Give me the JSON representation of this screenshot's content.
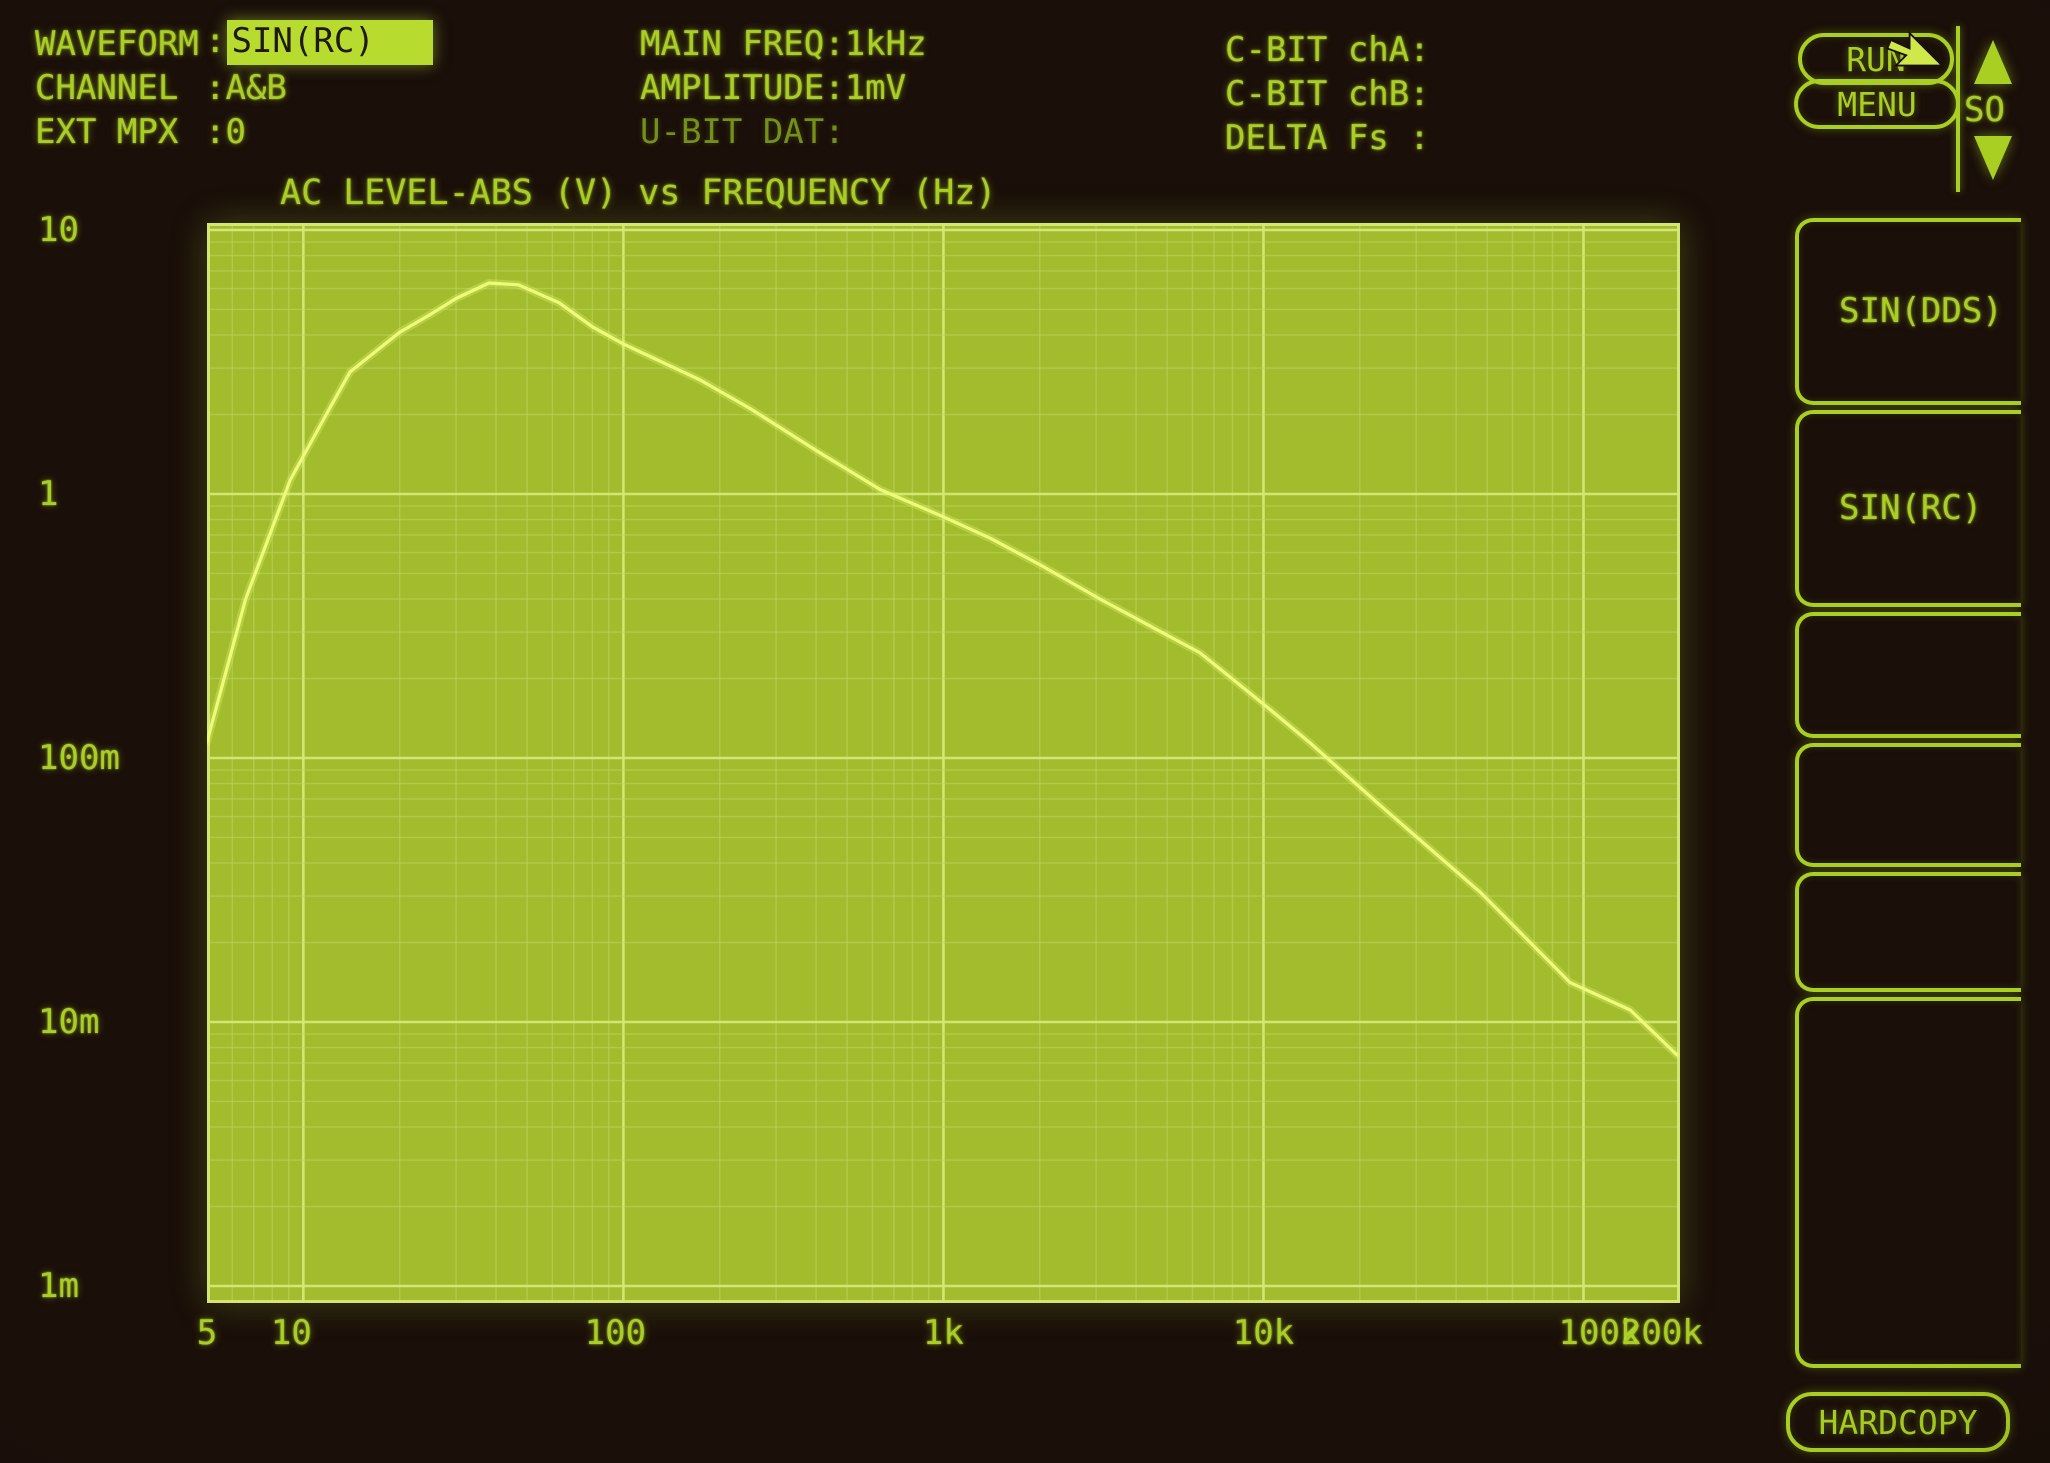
{
  "header": {
    "left": [
      {
        "label": "WAVEFORM",
        "sep": ":",
        "value": "SIN(RC)"
      },
      {
        "label": "CHANNEL",
        "sep": ":",
        "value": "A&B"
      },
      {
        "label": "EXT MPX",
        "sep": ":",
        "value": "0"
      }
    ],
    "middle": [
      {
        "label": "MAIN FREQ:",
        "value": "1kHz"
      },
      {
        "label": "AMPLITUDE:",
        "value": "1mV"
      },
      {
        "label": "U-BIT DAT:",
        "value": ""
      }
    ],
    "right": [
      {
        "label": "C-BIT chA:",
        "value": ""
      },
      {
        "label": "C-BIT chB:",
        "value": ""
      },
      {
        "label": "DELTA Fs :",
        "value": ""
      }
    ]
  },
  "controls": {
    "run": "RUN",
    "menu": "MENU",
    "scroll_label": "SO",
    "hardcopy": "HARDCOPY"
  },
  "softkeys": [
    {
      "label": "SIN(DDS)"
    },
    {
      "label": "SIN(RC)"
    },
    {
      "label": ""
    },
    {
      "label": ""
    },
    {
      "label": ""
    },
    {
      "label": ""
    }
  ],
  "colors": {
    "background": "#1a0f09",
    "text_green": "#a9cf22",
    "dim_green": "#74901a",
    "highlight_bg": "#b7dc2f",
    "highlight_text": "#201905",
    "plot_bg": "#a2bc2e",
    "grid_major": "#d6e878",
    "grid_minor": "#c2d55e",
    "curve": "#ecfc78"
  },
  "chart_data": {
    "type": "line",
    "title": "AC LEVEL-ABS (V) vs FREQUENCY (Hz)",
    "xlabel": "FREQUENCY (Hz)",
    "ylabel": "AC LEVEL-ABS (V)",
    "x_scale": "log",
    "y_scale": "log",
    "xlim": [
      5,
      200000
    ],
    "ylim": [
      0.001,
      10
    ],
    "grid": true,
    "x_ticks": [
      {
        "label": "5",
        "f": 5
      },
      {
        "label": "10",
        "f": 10,
        "dx": -12
      },
      {
        "label": "100",
        "f": 100,
        "dx": -8
      },
      {
        "label": "1k",
        "f": 1000
      },
      {
        "label": "10k",
        "f": 10000
      },
      {
        "label": "100k",
        "f": 100000,
        "dx": 16
      },
      {
        "label": "200k",
        "f": 200000,
        "dx": -18
      }
    ],
    "y_ticks": [
      {
        "label": "10",
        "v": 10
      },
      {
        "label": "1",
        "v": 1
      },
      {
        "label": "100m",
        "v": 0.1
      },
      {
        "label": "10m",
        "v": 0.01
      },
      {
        "label": "1m",
        "v": 0.001
      }
    ],
    "series": [
      {
        "points": [
          [
            5,
            0.115
          ],
          [
            6.6,
            0.4
          ],
          [
            9.1,
            1.13
          ],
          [
            12,
            2.08
          ],
          [
            14,
            2.9
          ],
          [
            20,
            4.1
          ],
          [
            25,
            4.8
          ],
          [
            30,
            5.5
          ],
          [
            38,
            6.3
          ],
          [
            47,
            6.2
          ],
          [
            63,
            5.3
          ],
          [
            80,
            4.3
          ],
          [
            100,
            3.7
          ],
          [
            174,
            2.7
          ],
          [
            250,
            2.1
          ],
          [
            412,
            1.43
          ],
          [
            634,
            1.04
          ],
          [
            1000,
            0.82
          ],
          [
            1400,
            0.68
          ],
          [
            2000,
            0.54
          ],
          [
            3090,
            0.4
          ],
          [
            6340,
            0.25
          ],
          [
            10000,
            0.16
          ],
          [
            14000,
            0.114
          ],
          [
            23200,
            0.066
          ],
          [
            47600,
            0.031
          ],
          [
            90800,
            0.0141
          ],
          [
            140000,
            0.0111
          ],
          [
            196000,
            0.0075
          ]
        ]
      }
    ]
  }
}
